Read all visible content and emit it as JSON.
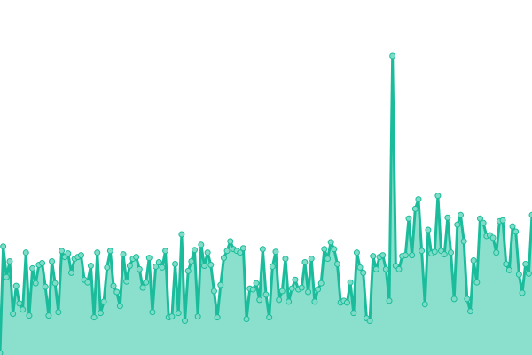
{
  "chart_data": {
    "type": "area",
    "title": "",
    "xlabel": "",
    "ylabel": "",
    "ylim": [
      0,
      345
    ],
    "grid": false,
    "legend": "none",
    "colors": {
      "line": "#1abc9c",
      "fill": "#8ae0cc",
      "point_fill": "#7fdcc6",
      "point_stroke": "#1abc9c"
    },
    "values": [
      1,
      123,
      88,
      106,
      46,
      78,
      58,
      51,
      116,
      44,
      98,
      81,
      102,
      104,
      77,
      44,
      106,
      81,
      48,
      118,
      111,
      115,
      93,
      109,
      111,
      113,
      85,
      82,
      101,
      42,
      116,
      47,
      60,
      99,
      118,
      78,
      71,
      55,
      114,
      83,
      101,
      109,
      111,
      97,
      76,
      82,
      110,
      48,
      100,
      105,
      99,
      118,
      42,
      43,
      103,
      47,
      137,
      38,
      95,
      106,
      119,
      43,
      125,
      101,
      116,
      102,
      72,
      42,
      79,
      110,
      118,
      129,
      120,
      118,
      116,
      121,
      40,
      75,
      74,
      81,
      62,
      120,
      68,
      42,
      100,
      117,
      62,
      72,
      109,
      60,
      75,
      85,
      74,
      76,
      105,
      71,
      109,
      60,
      74,
      81,
      120,
      109,
      128,
      120,
      103,
      59,
      61,
      59,
      82,
      47,
      116,
      99,
      93,
      41,
      38,
      112,
      97,
      111,
      113,
      97,
      61,
      341,
      101,
      97,
      112,
      113,
      155,
      113,
      166,
      177,
      118,
      57,
      142,
      115,
      117,
      181,
      118,
      114,
      156,
      116,
      63,
      148,
      159,
      129,
      63,
      49,
      107,
      82,
      155,
      150,
      135,
      136,
      133,
      116,
      152,
      153,
      103,
      96,
      146,
      140,
      91,
      70,
      103,
      92,
      159
    ]
  }
}
